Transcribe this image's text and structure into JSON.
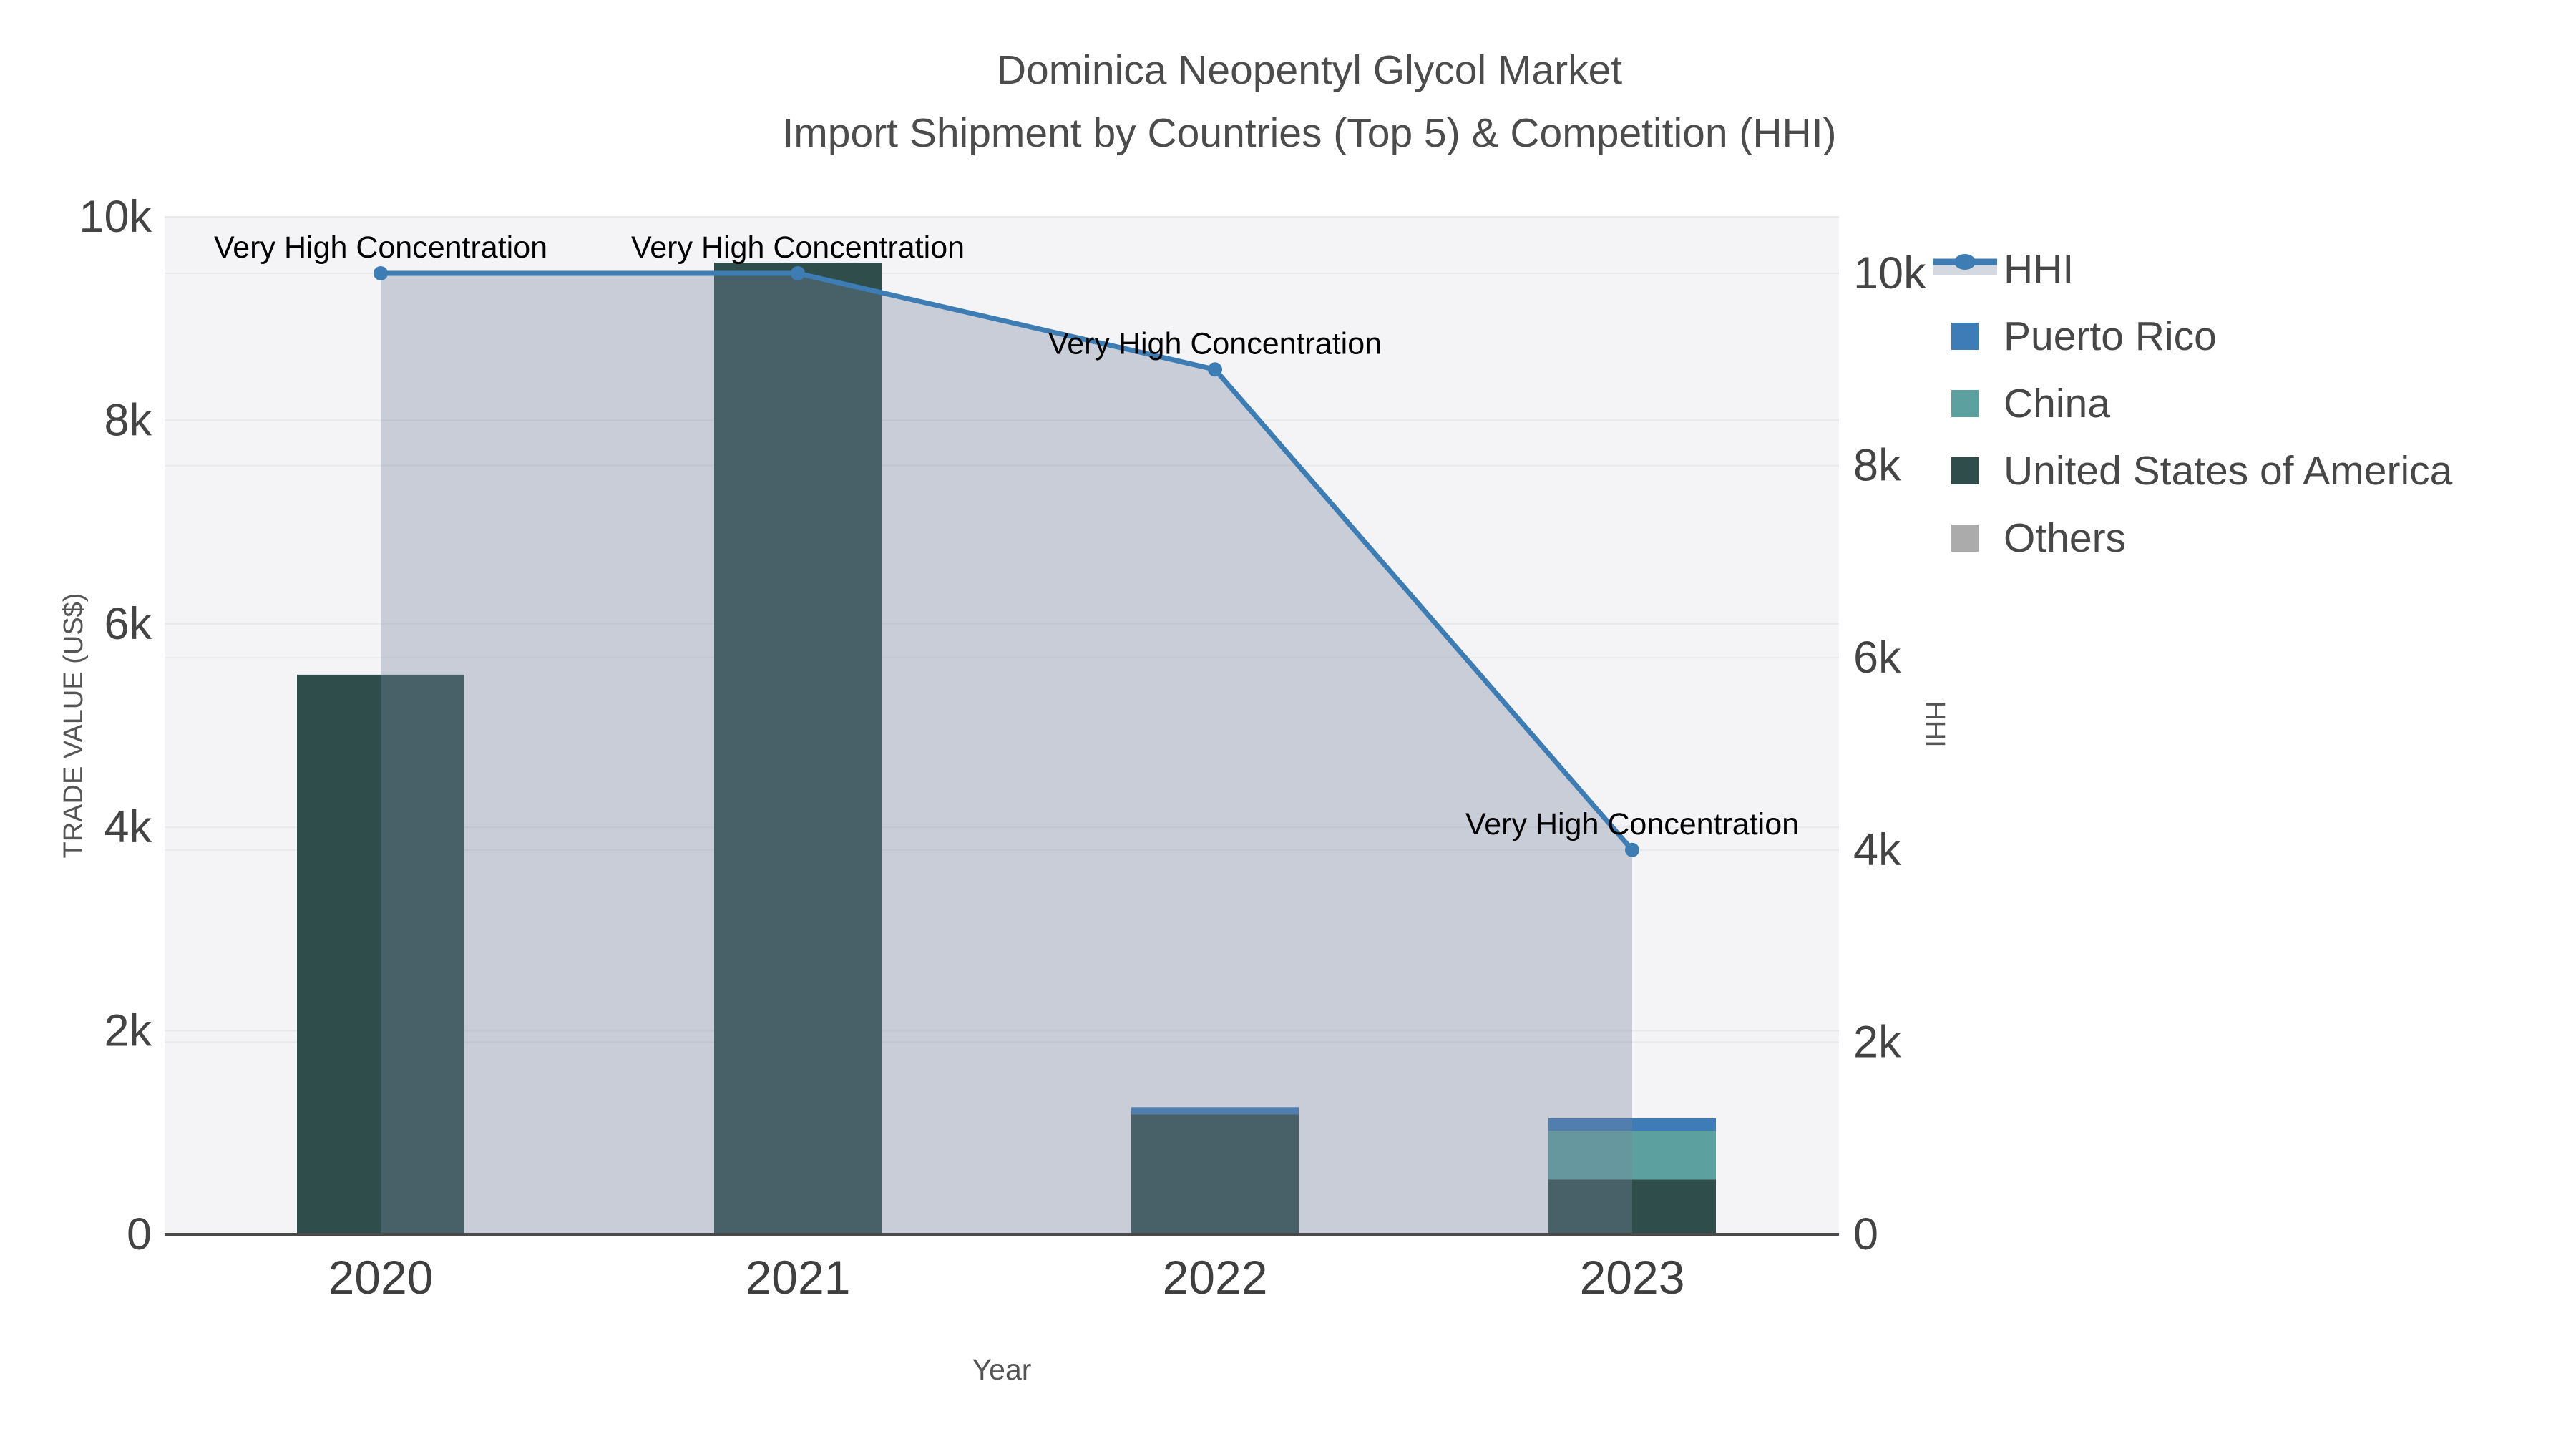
{
  "title": "Dominica Neopentyl Glycol Market",
  "subtitle": "Import Shipment by Countries (Top 5) & Competition (HHI)",
  "chart_data": {
    "type": "bar",
    "subtype": "stacked bars with overlaid HHI line+area on secondary axis",
    "categories": [
      "2020",
      "2021",
      "2022",
      "2023"
    ],
    "series": [
      {
        "name": "Puerto Rico",
        "type": "bar",
        "color": "#3E7CB8",
        "values": [
          0,
          0,
          70,
          120
        ]
      },
      {
        "name": "China",
        "type": "bar",
        "color": "#5CA09F",
        "values": [
          0,
          0,
          0,
          480
        ]
      },
      {
        "name": "United States of America",
        "type": "bar",
        "color": "#2F4E4B",
        "values": [
          5500,
          9550,
          1180,
          540
        ]
      },
      {
        "name": "Others",
        "type": "bar",
        "color": "#ABABAB",
        "values": [
          0,
          0,
          0,
          0
        ]
      }
    ],
    "hhi": {
      "name": "HHI",
      "type": "line+area",
      "color": "#3E7CB4",
      "area_color": "rgba(121,132,159,0.35)",
      "values": [
        10000,
        10000,
        9000,
        4000
      ],
      "yaxis": "right"
    },
    "annotations": [
      {
        "text": "Very High Concentration",
        "point": 0
      },
      {
        "text": "Very High Concentration",
        "point": 1
      },
      {
        "text": "Very High Concentration",
        "point": 2
      },
      {
        "text": "Very High Concentration",
        "point": 3
      }
    ],
    "xlabel": "Year",
    "ylabel_left": "TRADE VALUE (US$)",
    "ylabel_right": "HHI",
    "yticks": [
      {
        "label": "0",
        "value": 0
      },
      {
        "label": "2k",
        "value": 2000
      },
      {
        "label": "4k",
        "value": 4000
      },
      {
        "label": "6k",
        "value": 6000
      },
      {
        "label": "8k",
        "value": 8000
      },
      {
        "label": "10k",
        "value": 10000
      }
    ],
    "ylim_left": [
      0,
      10000
    ],
    "ylim_right": [
      0,
      10588
    ],
    "grid": true,
    "legend_position": "right",
    "plot_bg": "#F4F4F6",
    "grid_color": "#E6E8EA",
    "axis_line_color": "#4A4A4A",
    "tick_color": "#444444",
    "label_color": "#555555",
    "annotation_color": "#000000"
  },
  "legend": {
    "items": [
      {
        "label": "HHI",
        "type": "line",
        "color": "#3E7CB4",
        "band_color": "#D3D8E1"
      },
      {
        "label": "Puerto Rico",
        "type": "square",
        "color": "#3E7CB8"
      },
      {
        "label": "China",
        "type": "square",
        "color": "#5CA09F"
      },
      {
        "label": "United States of America",
        "type": "square",
        "color": "#2F4E4B"
      },
      {
        "label": "Others",
        "type": "square",
        "color": "#ABABAB"
      }
    ]
  }
}
